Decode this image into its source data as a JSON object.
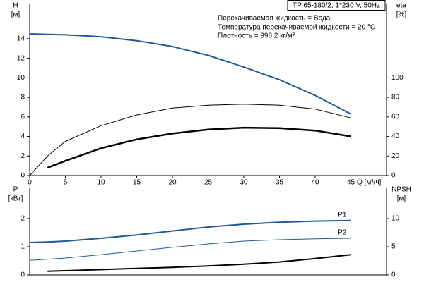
{
  "header": {
    "title": "TP 65-180/2, 1*230 V, 50Hz",
    "notes": [
      "Перекачиваемая жидкость = Вода",
      "Температура перекачиваемой жидкости = 20 °C",
      "Плотность = 998.2 кг/м³"
    ]
  },
  "chart_data": [
    {
      "type": "line",
      "ylabel": "H",
      "yunit": "[м]",
      "y2label": "eta",
      "y2unit": "[%]",
      "xlabel": "Q [м³/ч]",
      "x": [
        0,
        2.5,
        5,
        10,
        15,
        20,
        25,
        30,
        35,
        40,
        45
      ],
      "xlim": [
        0,
        50
      ],
      "xticks": [
        0,
        5,
        10,
        15,
        20,
        25,
        30,
        35,
        40,
        45
      ],
      "ylim": [
        0,
        17.6
      ],
      "yticks": [
        0,
        2,
        4,
        6,
        8,
        10,
        12,
        14
      ],
      "y2lim": [
        0,
        176
      ],
      "y2ticks": [
        0,
        20,
        40,
        60,
        80,
        100
      ],
      "series": [
        {
          "color": "#1f5a96",
          "width": 2,
          "values": [
            14.5,
            14.45,
            14.4,
            14.2,
            13.8,
            13.2,
            12.3,
            11.1,
            9.8,
            8.2,
            6.3
          ]
        },
        {
          "color": "#000000",
          "width": 1,
          "axis": "y2",
          "values": [
            0,
            20,
            35,
            51,
            62,
            69,
            72,
            73,
            72,
            68,
            59
          ]
        },
        {
          "color": "#000000",
          "width": 2.5,
          "axis": "y2",
          "values": [
            null,
            8,
            15,
            28,
            37,
            43,
            47,
            49,
            48.5,
            46,
            40
          ]
        }
      ]
    },
    {
      "type": "line",
      "ylabel": "P",
      "yunit": "[кВт]",
      "y2label": "NPSH",
      "y2unit": "[м]",
      "x": [
        0,
        2.5,
        5,
        10,
        15,
        20,
        25,
        30,
        35,
        40,
        45
      ],
      "xlim": [
        0,
        50
      ],
      "ylim": [
        0,
        3.1
      ],
      "yticks": [
        0,
        1,
        2
      ],
      "y2lim": [
        0,
        15.5
      ],
      "y2ticks": [
        0,
        5,
        10
      ],
      "series": [
        {
          "name": "P1",
          "color": "#1f5a96",
          "width": 2,
          "values": [
            1.15,
            1.17,
            1.2,
            1.3,
            1.42,
            1.56,
            1.7,
            1.8,
            1.87,
            1.91,
            1.93
          ]
        },
        {
          "name": "P2",
          "color": "#1f5a96",
          "width": 1,
          "values": [
            0.52,
            0.56,
            0.6,
            0.72,
            0.85,
            0.98,
            1.1,
            1.2,
            1.25,
            1.28,
            1.3
          ]
        },
        {
          "color": "#000000",
          "width": 2,
          "axis": "y2",
          "values": [
            null,
            0.65,
            0.75,
            0.95,
            1.15,
            1.35,
            1.6,
            1.9,
            2.3,
            2.9,
            3.6
          ]
        }
      ]
    }
  ]
}
